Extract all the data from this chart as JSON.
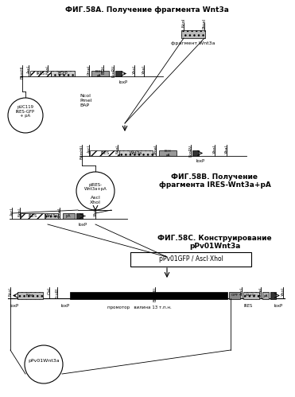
{
  "title_A": "ФИГ.58А. Получение фрагмента Wnt3a",
  "title_B": "ФИГ.58В. Получение\nфрагмента IRES-Wnt3a+pA",
  "title_C": "ФИГ.58С. Конструирование\npPv01Wnt3a",
  "bg_color": "#ffffff",
  "fig_width": 3.71,
  "fig_height": 4.99
}
